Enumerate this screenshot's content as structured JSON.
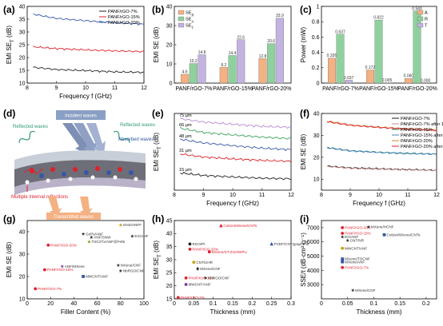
{
  "panel_letters": [
    "(a)",
    "(b)",
    "(c)",
    "(d)",
    "(e)",
    "(f)",
    "(g)",
    "(h)",
    "(i)"
  ],
  "schematic": {
    "incident": "Incident waves",
    "reflected_left": "Reflected waves",
    "reflected_right": "Reflected waves",
    "absorbed": "Absorbed waves",
    "multiple": "Multiple internal reflections",
    "transmitted": "Transmitted waves"
  },
  "colors": {
    "green": "#2e8b57",
    "red": "#e0202c",
    "blue": "#3557a6",
    "orange_bar": "#f4b183",
    "green_bar": "#8fd19e",
    "purple_bar": "#c3b3e0"
  },
  "chart_data": [
    {
      "id": "a",
      "type": "line",
      "ylabel": "EMI SE_T (dB)",
      "xlabel": "Frequency f (GHz)",
      "xlim": [
        8,
        12
      ],
      "xticks": [
        8,
        9,
        10,
        11,
        12
      ],
      "ylim": [
        10,
        40
      ],
      "yticks": [
        10,
        15,
        20,
        25,
        30,
        35,
        40
      ],
      "legend_position": "top-right",
      "series": [
        {
          "name": "PANF/rGO-7%",
          "color": "#1f1f1f",
          "x": [
            8.2,
            9.0,
            10.0,
            11.0,
            12.0
          ],
          "y": [
            16.2,
            15.3,
            14.9,
            14.4,
            14.2
          ]
        },
        {
          "name": "PANF/rGO-15%",
          "color": "#e0202c",
          "x": [
            8.2,
            9.0,
            10.0,
            11.0,
            12.0
          ],
          "y": [
            24.2,
            23.5,
            23.0,
            22.6,
            22.3
          ]
        },
        {
          "name": "PANF/rGO-20%",
          "color": "#3557a6",
          "x": [
            8.2,
            9.0,
            10.0,
            11.0,
            12.0
          ],
          "y": [
            37.0,
            35.3,
            34.4,
            33.6,
            33.0
          ]
        }
      ]
    },
    {
      "id": "b",
      "type": "bar",
      "ylabel": "EMI SE (dB)",
      "categories": [
        "PANF/rGO-7%",
        "PANF/rGO-15%",
        "PANF/rGO-20%"
      ],
      "ylim": [
        0,
        40
      ],
      "yticks": [
        0,
        10,
        20,
        30,
        40
      ],
      "legend_position": "top-left",
      "series": [
        {
          "name": "SE_R",
          "color": "#f4b183",
          "values": [
            4.6,
            8.2,
            12.8
          ],
          "labels": [
            "4.6",
            "8.2",
            "12.8"
          ]
        },
        {
          "name": "SE_A",
          "color": "#8fd19e",
          "values": [
            10.2,
            14.4,
            20.6
          ],
          "labels": [
            "10.2",
            "14.4",
            "20.6"
          ]
        },
        {
          "name": "SE_T",
          "color": "#c3b3e0",
          "values": [
            14.8,
            22.6,
            33.9
          ],
          "labels": [
            "14.8",
            "22.6",
            "33.9"
          ]
        }
      ]
    },
    {
      "id": "c",
      "type": "bar",
      "ylabel": "Power (mW)",
      "categories": [
        "PANF/rGO-7%",
        "PANF/rGO-15%",
        "PANF/rGO-20%"
      ],
      "ylim": [
        0,
        1.0
      ],
      "yticks": [
        0.0,
        0.2,
        0.4,
        0.6,
        0.8,
        1.0
      ],
      "legend_position": "top-right",
      "series": [
        {
          "name": "A",
          "color": "#f4b183",
          "values": [
            0.326,
            0.172,
            0.06
          ],
          "labels": [
            "0.326",
            "0.172",
            "0.060"
          ]
        },
        {
          "name": "R",
          "color": "#8fd19e",
          "values": [
            0.637,
            0.822,
            0.94
          ],
          "labels": [
            "0.637",
            "0.822",
            "0.940"
          ]
        },
        {
          "name": "T",
          "color": "#c3b3e0",
          "values": [
            0.037,
            0.005,
            0.0004
          ],
          "labels": [
            "0.037",
            "0.005",
            "0.000"
          ]
        }
      ]
    },
    {
      "id": "e",
      "type": "line",
      "ylabel": "EMI SE_T (dB)",
      "xlabel": "Frequency f (GHz)",
      "xlim": [
        8,
        12
      ],
      "xticks": [
        8,
        9,
        10,
        11,
        12
      ],
      "ylim": [
        15,
        40
      ],
      "series": [
        {
          "name": "75 μm",
          "color": "#b58ad6",
          "x": [
            8.2,
            9.0,
            10.0,
            11.0,
            12.0
          ],
          "y": [
            38.3,
            37.2,
            36.5,
            35.8,
            35.5
          ]
        },
        {
          "name": "66 μm",
          "color": "#3aa35a",
          "x": [
            8.2,
            9.0,
            10.0,
            11.0,
            12.0
          ],
          "y": [
            35.2,
            33.8,
            33.0,
            32.3,
            31.8
          ]
        },
        {
          "name": "48 μm",
          "color": "#3557a6",
          "x": [
            8.2,
            9.0,
            10.0,
            11.0,
            12.0
          ],
          "y": [
            31.6,
            30.4,
            29.5,
            28.7,
            28.2
          ]
        },
        {
          "name": "31 μm",
          "color": "#e0202c",
          "x": [
            8.2,
            9.0,
            10.0,
            11.0,
            12.0
          ],
          "y": [
            26.8,
            25.8,
            25.2,
            24.7,
            24.4
          ]
        },
        {
          "name": "15 μm",
          "color": "#1f1f1f",
          "x": [
            8.2,
            9.0,
            10.0,
            11.0,
            12.0
          ],
          "y": [
            20.6,
            19.8,
            19.3,
            18.9,
            18.7
          ]
        }
      ]
    },
    {
      "id": "f",
      "type": "line",
      "ylabel": "EMI SE (dB)",
      "xlabel": "Frequency f (GHz)",
      "xlim": [
        8,
        12
      ],
      "xticks": [
        8,
        9,
        10,
        11,
        12
      ],
      "ylim": [
        5,
        40
      ],
      "yticks": [
        10,
        20,
        30,
        40
      ],
      "legend_position": "top-right",
      "series": [
        {
          "name": "PANF/rGO-7%",
          "color": "#1f1f1f",
          "x": [
            8.2,
            9.0,
            10.0,
            11.0,
            12.0
          ],
          "y": [
            16.0,
            15.2,
            14.8,
            14.4,
            14.1
          ]
        },
        {
          "name": "PANF/rGO-7% after 1000 times",
          "color": "#c98a8a",
          "x": [
            8.2,
            9.0,
            10.0,
            11.0,
            12.0
          ],
          "y": [
            15.8,
            15.0,
            14.6,
            14.3,
            14.0
          ]
        },
        {
          "name": "PANF/rGO-15%",
          "color": "#2a8f6a",
          "x": [
            8.2,
            9.0,
            10.0,
            11.0,
            12.0
          ],
          "y": [
            24.5,
            23.0,
            22.3,
            21.8,
            21.5
          ]
        },
        {
          "name": "PANF/rGO-15% after 1000 times",
          "color": "#4a7fc0",
          "x": [
            8.2,
            9.0,
            10.0,
            11.0,
            12.0
          ],
          "y": [
            24.3,
            22.9,
            22.2,
            21.7,
            21.4
          ]
        },
        {
          "name": "PANF/rGO-20%",
          "color": "#d48a3a",
          "x": [
            8.2,
            9.0,
            10.0,
            11.0,
            12.0
          ],
          "y": [
            36.5,
            34.8,
            33.8,
            33.0,
            32.5
          ]
        },
        {
          "name": "PANF/rGO-20% after 1000 times",
          "color": "#e0202c",
          "x": [
            8.2,
            9.0,
            10.0,
            11.0,
            12.0
          ],
          "y": [
            36.2,
            34.6,
            33.6,
            32.8,
            32.3
          ]
        }
      ]
    },
    {
      "id": "g",
      "type": "scatter",
      "ylabel": "EMI SE (dB)",
      "xlabel": "Filler Content (%)",
      "xlim": [
        0,
        100
      ],
      "xticks": [
        0,
        20,
        40,
        60,
        80,
        100
      ],
      "ylim": [
        10,
        45
      ],
      "yticks": [
        10,
        20,
        30,
        40
      ],
      "points": [
        {
          "label": "GNS/ANFF",
          "x": 80,
          "y": 43,
          "color": "#c8a000",
          "marker": "star"
        },
        {
          "label": "GnPs/ANF",
          "x": 48,
          "y": 39,
          "color": "#333333",
          "marker": "star"
        },
        {
          "label": "ANF/SNW",
          "x": 55,
          "y": 37.5,
          "color": "#333333",
          "marker": "star"
        },
        {
          "label": "EG/ANF",
          "x": 90,
          "y": 38,
          "color": "#333333",
          "marker": "star"
        },
        {
          "label": "Ti3C2Tx/ANF@FeNi",
          "x": 53,
          "y": 35.5,
          "color": "#7aa020",
          "marker": "star"
        },
        {
          "label": "PANF/rGO-20%",
          "x": 18,
          "y": 34,
          "color": "#e0202c",
          "marker": "circle"
        },
        {
          "label": "ANF/MXene",
          "x": 30,
          "y": 24.5,
          "color": "#7a3aa0",
          "marker": "star"
        },
        {
          "label": "MXene/CNF",
          "x": 78,
          "y": 25,
          "color": "#333333",
          "marker": "star"
        },
        {
          "label": "PANF/rGO-15%",
          "x": 15,
          "y": 23,
          "color": "#e0202c",
          "marker": "circle"
        },
        {
          "label": "NbRGO/CNF",
          "x": 80,
          "y": 22.5,
          "color": "#333333",
          "marker": "star"
        },
        {
          "label": "MWCNT/ANF",
          "x": 48,
          "y": 20,
          "color": "#3557a6",
          "marker": "square"
        },
        {
          "label": "PANF/rGO-7%",
          "x": 7,
          "y": 14.5,
          "color": "#e0202c",
          "marker": "circle"
        }
      ]
    },
    {
      "id": "h",
      "type": "scatter",
      "ylabel": "EMI SE_T (dB)",
      "xlabel": "Thickness (mm)",
      "xlim": [
        0,
        0.3
      ],
      "xticks": [
        0.0,
        0.05,
        0.1,
        0.15,
        0.2,
        0.25,
        0.3
      ],
      "ylim": [
        15,
        45
      ],
      "yticks": [
        15,
        20,
        25,
        30,
        35,
        40,
        45
      ],
      "points": [
        {
          "label": "Cotton/MXene/CNTs",
          "x": 0.12,
          "y": 43,
          "color": "#e0202c",
          "marker": "triangle"
        },
        {
          "label": "RGO/PI",
          "x": 0.04,
          "y": 36,
          "color": "#222222",
          "marker": "circle"
        },
        {
          "label": "PVDF/CNT/graphene",
          "x": 0.25,
          "y": 36,
          "color": "#3557a6",
          "marker": "triangle"
        },
        {
          "label": "PANF/rGO-20%",
          "x": 0.04,
          "y": 34,
          "color": "#e0202c",
          "marker": "circle"
        },
        {
          "label": "MXene/ST-ZnO/WPU",
          "x": 0.09,
          "y": 33,
          "color": "#e0202c",
          "marker": "circle"
        },
        {
          "label": "CNT/UHR",
          "x": 0.05,
          "y": 29,
          "color": "#c8a000",
          "marker": "circle"
        },
        {
          "label": "MXene/CNF",
          "x": 0.06,
          "y": 26.5,
          "color": "#333333",
          "marker": "diamond"
        },
        {
          "label": "PANF/rGO-15%",
          "x": 0.03,
          "y": 23,
          "color": "#e0202c",
          "marker": "circle"
        },
        {
          "label": "NbRGO/CNF",
          "x": 0.08,
          "y": 23,
          "color": "#333333",
          "marker": "star"
        },
        {
          "label": "MWCNT/ANF",
          "x": 0.03,
          "y": 20.5,
          "color": "#7a3aa0",
          "marker": "circle"
        },
        {
          "label": "PANF/rGO-7%",
          "x": 0.01,
          "y": 15.5,
          "color": "#e0202c",
          "marker": "circle"
        }
      ]
    },
    {
      "id": "i",
      "type": "scatter",
      "ylabel": "SSE/t (dB·cm²·g⁻¹)",
      "xlabel": "Thickness (mm)",
      "xlim": [
        0,
        0.22
      ],
      "xticks": [
        0.0,
        0.05,
        0.1,
        0.15,
        0.2
      ],
      "ylim": [
        2000,
        7500
      ],
      "yticks": [
        3000,
        4000,
        5000,
        6000,
        7000
      ],
      "points": [
        {
          "label": "PANF/rGO-20%",
          "x": 0.04,
          "y": 7000,
          "color": "#e0202c",
          "marker": "circle"
        },
        {
          "label": "MXene/HCNF",
          "x": 0.09,
          "y": 7050,
          "color": "#333333",
          "marker": "star"
        },
        {
          "label": "PANF/rGO-15%",
          "x": 0.04,
          "y": 6600,
          "color": "#e0202c",
          "marker": "circle"
        },
        {
          "label": "EG/ANF",
          "x": 0.04,
          "y": 6350,
          "color": "#333333",
          "marker": "star"
        },
        {
          "label": "Cotton/MXene/CNTs",
          "x": 0.12,
          "y": 6500,
          "color": "#3557a6",
          "marker": "square"
        },
        {
          "label": "CNT/NR",
          "x": 0.05,
          "y": 6100,
          "color": "#333333",
          "marker": "star"
        },
        {
          "label": "MWCNT/ANF",
          "x": 0.04,
          "y": 5550,
          "color": "#c8a000",
          "marker": "circle"
        },
        {
          "label": "MXene/TOCNF",
          "x": 0.04,
          "y": 4800,
          "color": "#3557a6",
          "marker": "square"
        },
        {
          "label": "MXene/ANF",
          "x": 0.04,
          "y": 4600,
          "color": "#3557a6",
          "marker": "square"
        },
        {
          "label": "PANF/rGO-7%",
          "x": 0.04,
          "y": 4200,
          "color": "#e0202c",
          "marker": "circle"
        },
        {
          "label": "MXene/CNF",
          "x": 0.06,
          "y": 2600,
          "color": "#333333",
          "marker": "star"
        }
      ]
    }
  ]
}
